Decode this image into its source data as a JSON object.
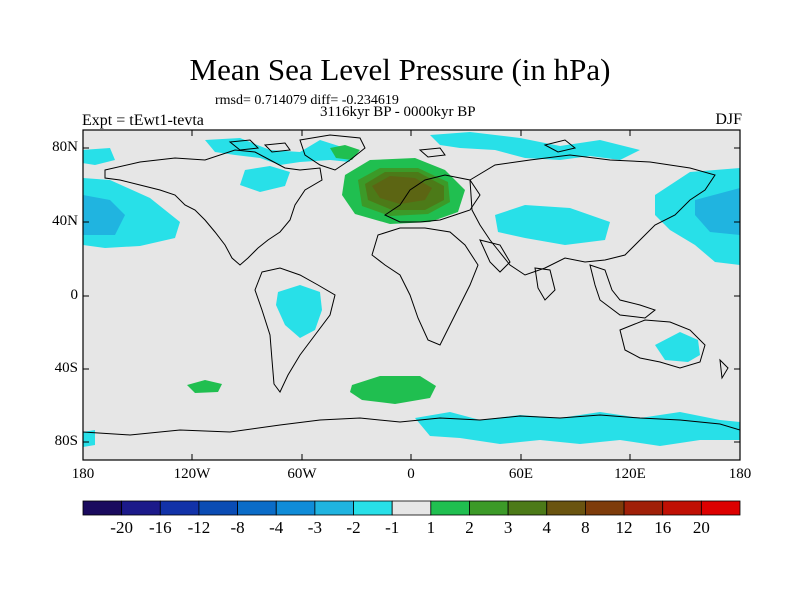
{
  "title": "Mean Sea Level Pressure (in hPa)",
  "stats": "rmsd= 0.714079 diff= -0.234619",
  "period": "3116kyr BP - 0000kyr BP",
  "experiment": "Expt = tEwt1-tevta",
  "season": "DJF",
  "lat_labels": [
    "80N",
    "40N",
    "0",
    "40S",
    "80S"
  ],
  "lon_labels": [
    "180",
    "120W",
    "60W",
    "0",
    "60E",
    "120E",
    "180"
  ],
  "colorbar": {
    "labels": [
      "-20",
      "-16",
      "-12",
      "-8",
      "-4",
      "-3",
      "-2",
      "-1",
      "1",
      "2",
      "3",
      "4",
      "8",
      "12",
      "16",
      "20"
    ],
    "colors": [
      "#1a0a5e",
      "#1c1a8a",
      "#1232a8",
      "#0a4cb4",
      "#0a6cc8",
      "#108cd8",
      "#20b4e0",
      "#28e0e8",
      "#e6e6e6",
      "#20bf50",
      "#3c9a28",
      "#4c7a18",
      "#6a5410",
      "#7e3c0a",
      "#a02008",
      "#c01004",
      "#dd0000"
    ]
  },
  "colors": {
    "background": "#e6e6e6",
    "neg1": "#28e0e8",
    "neg2": "#20b4e0",
    "neg3": "#108cd8",
    "pos1": "#20bf50",
    "pos2": "#3c9a28",
    "pos3": "#4c7a18",
    "pos4": "#6a5410"
  }
}
